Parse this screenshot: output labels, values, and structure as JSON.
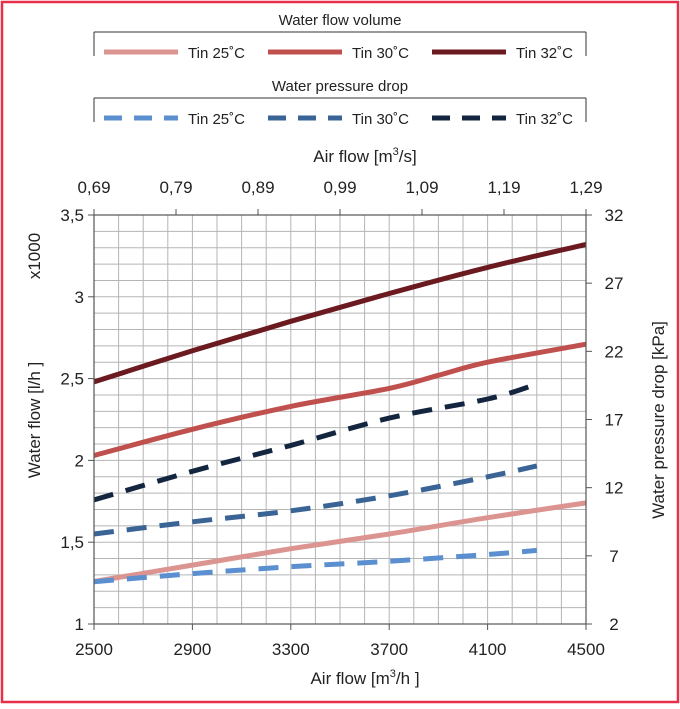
{
  "chart_data": {
    "type": "line",
    "legend_groups": [
      {
        "title": "Water flow volume",
        "entries": [
          {
            "label": "Tin 25˚C",
            "color": "#dc9490",
            "style": "solid"
          },
          {
            "label": "Tin 30˚C",
            "color": "#c0504d",
            "style": "solid"
          },
          {
            "label": "Tin 32˚C",
            "color": "#6b1a1f",
            "style": "solid"
          }
        ]
      },
      {
        "title": "Water pressure drop",
        "entries": [
          {
            "label": "Tin 25˚C",
            "color": "#5b8fd0",
            "style": "dashed"
          },
          {
            "label": "Tin 30˚C",
            "color": "#3a6496",
            "style": "dashed"
          },
          {
            "label": "Tin 32˚C",
            "color": "#14263f",
            "style": "dashed"
          }
        ]
      }
    ],
    "x_bottom": {
      "label_main": "Air flow  [m",
      "label_sup": "3",
      "label_end": "/h ]",
      "range": [
        2500,
        4500
      ],
      "ticks": [
        "2500",
        "2900",
        "3300",
        "3700",
        "4100",
        "4500"
      ]
    },
    "x_top": {
      "label_main": "Air flow  [m",
      "label_sup": "3",
      "label_end": "/s]",
      "ticks": [
        "0,69",
        "0,79",
        "0,89",
        "0,99",
        "1,09",
        "1,19",
        "1,29"
      ]
    },
    "y_left": {
      "label": "Water flow  [l/h ]",
      "multiplier": "x1000",
      "range": [
        1,
        3.5
      ],
      "ticks": [
        "1",
        "1,5",
        "2",
        "2,5",
        "3",
        "3,5"
      ]
    },
    "y_right": {
      "label": "Water pressure drop  [kPa]",
      "range": [
        2,
        32
      ],
      "ticks": [
        "2",
        "7",
        "12",
        "17",
        "22",
        "27",
        "32"
      ]
    },
    "grid": true,
    "series": [
      {
        "name": "Water flow volume Tin 25˚C",
        "axis": "left",
        "color": "#dc9490",
        "style": "solid",
        "x": [
          2500,
          2900,
          3300,
          3700,
          4100,
          4500
        ],
        "y": [
          1.26,
          1.36,
          1.46,
          1.55,
          1.65,
          1.74
        ]
      },
      {
        "name": "Water flow volume Tin 30˚C",
        "axis": "left",
        "color": "#c0504d",
        "style": "solid",
        "x": [
          2500,
          2900,
          3300,
          3700,
          3900,
          4100,
          4500
        ],
        "y": [
          2.03,
          2.19,
          2.33,
          2.44,
          2.52,
          2.6,
          2.71
        ]
      },
      {
        "name": "Water flow volume Tin 32˚C",
        "axis": "left",
        "color": "#6b1a1f",
        "style": "solid",
        "x": [
          2500,
          2900,
          3300,
          3700,
          4100,
          4500
        ],
        "y": [
          2.48,
          2.67,
          2.85,
          3.02,
          3.18,
          3.32
        ]
      },
      {
        "name": "Water pressure drop Tin 25˚C",
        "axis": "right",
        "color": "#5b8fd0",
        "style": "dashed",
        "x": [
          2500,
          2900,
          3300,
          3700,
          4100,
          4300
        ],
        "y": [
          5.1,
          5.7,
          6.2,
          6.6,
          7.1,
          7.4
        ]
      },
      {
        "name": "Water pressure drop Tin 30˚C",
        "axis": "right",
        "color": "#3a6496",
        "style": "dashed",
        "x": [
          2500,
          2900,
          3300,
          3700,
          4100,
          4300
        ],
        "y": [
          8.6,
          9.5,
          10.3,
          11.4,
          12.8,
          13.6
        ]
      },
      {
        "name": "Water pressure drop Tin 32˚C",
        "axis": "right",
        "color": "#14263f",
        "style": "dashed",
        "x": [
          2500,
          2900,
          3300,
          3700,
          4100,
          4300
        ],
        "y": [
          11.1,
          13.2,
          15.1,
          17.1,
          18.5,
          19.6
        ]
      }
    ]
  }
}
